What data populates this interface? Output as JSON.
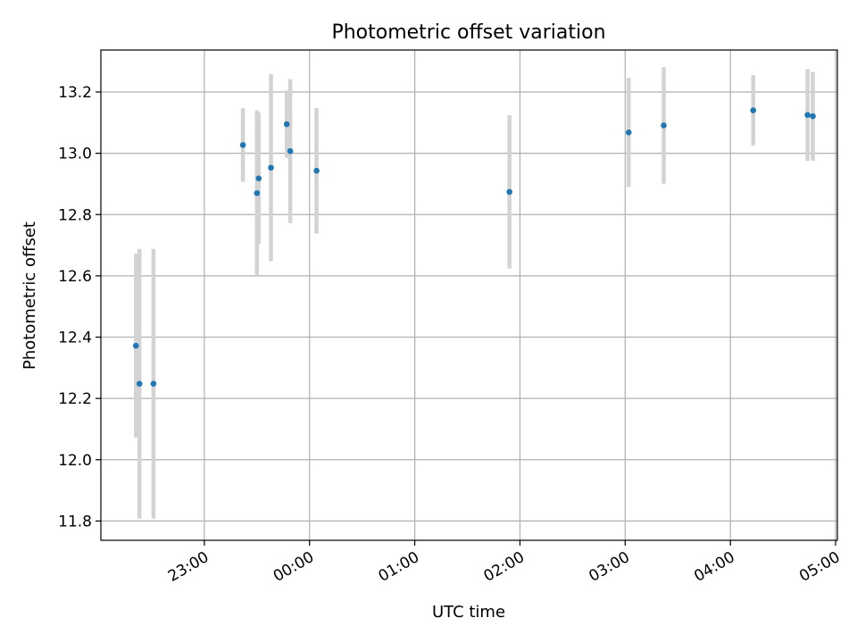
{
  "chart_data": {
    "type": "scatter",
    "title": "Photometric offset variation",
    "xlabel": "UTC time",
    "ylabel": "Photometric offset",
    "grid": true,
    "colors": {
      "marker": "#1f77b4",
      "errorbar": "#d3d3d3",
      "grid": "#b0b0b0",
      "axes": "#000000"
    },
    "x_is_time": true,
    "x_unit": "UTC time (HH:MM)",
    "xlim": [
      "22:01",
      "05:01"
    ],
    "ylim": [
      11.737,
      13.337
    ],
    "x_ticks": [
      "23:00",
      "00:00",
      "01:00",
      "02:00",
      "03:00",
      "04:00",
      "05:00"
    ],
    "y_ticks": [
      "11.8",
      "12.0",
      "12.2",
      "12.4",
      "12.6",
      "12.8",
      "13.0",
      "13.2"
    ],
    "points": [
      {
        "x": "22:21",
        "y": 12.372,
        "err": 0.3
      },
      {
        "x": "22:23",
        "y": 12.248,
        "err": 0.44
      },
      {
        "x": "22:31",
        "y": 12.248,
        "err": 0.44
      },
      {
        "x": "23:22",
        "y": 13.027,
        "err": 0.12
      },
      {
        "x": "23:30",
        "y": 12.87,
        "err": 0.27
      },
      {
        "x": "23:31",
        "y": 12.918,
        "err": 0.215
      },
      {
        "x": "23:38",
        "y": 12.953,
        "err": 0.305
      },
      {
        "x": "23:47",
        "y": 13.095,
        "err": 0.11
      },
      {
        "x": "23:49",
        "y": 13.007,
        "err": 0.235
      },
      {
        "x": "00:04",
        "y": 12.943,
        "err": 0.205
      },
      {
        "x": "01:54",
        "y": 12.874,
        "err": 0.25
      },
      {
        "x": "03:02",
        "y": 13.068,
        "err": 0.178
      },
      {
        "x": "03:22",
        "y": 13.091,
        "err": 0.19
      },
      {
        "x": "04:13",
        "y": 13.14,
        "err": 0.115
      },
      {
        "x": "04:44",
        "y": 13.125,
        "err": 0.15
      },
      {
        "x": "04:47",
        "y": 13.121,
        "err": 0.145
      }
    ]
  }
}
